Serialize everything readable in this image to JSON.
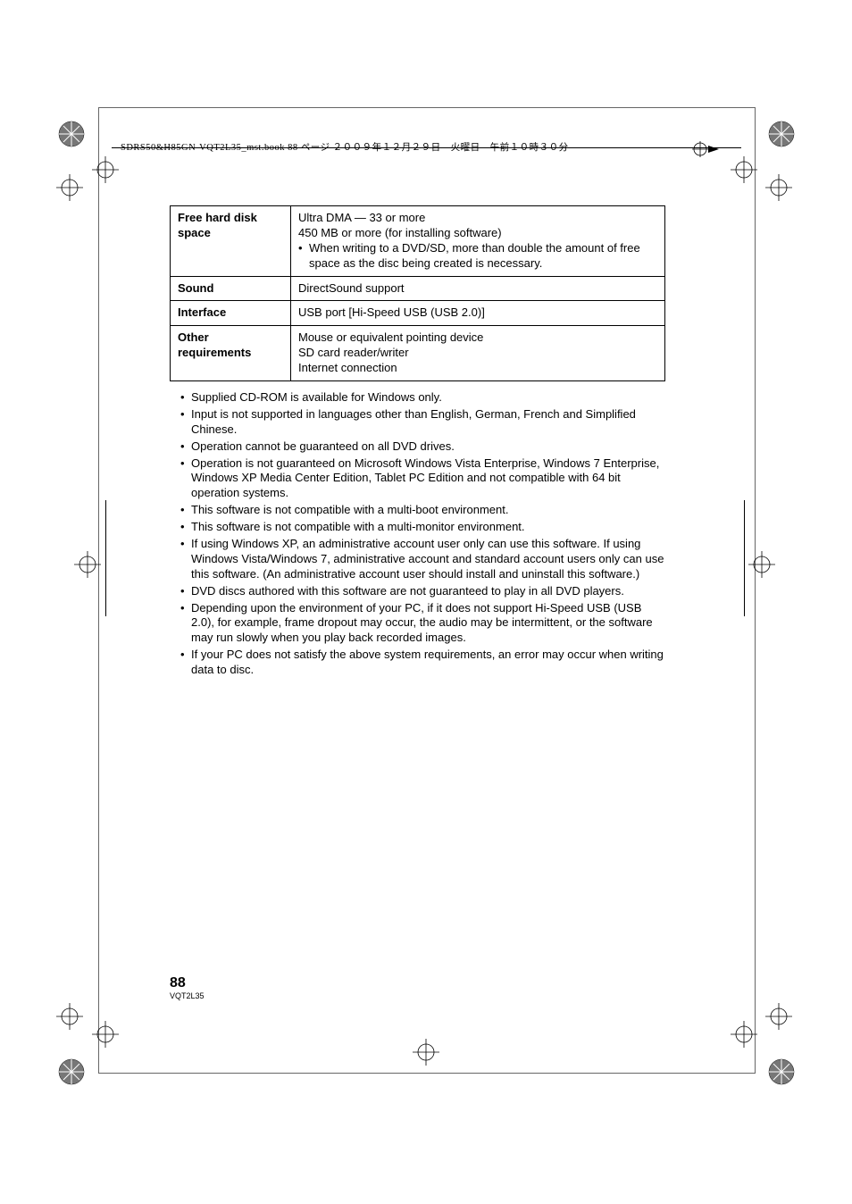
{
  "header": {
    "text": "SDRS50&H85GN-VQT2L35_mst.book  88 ページ  ２００９年１２月２９日　火曜日　午前１０時３０分"
  },
  "table": {
    "rows": [
      {
        "label": "Free hard disk space",
        "lines": [
          "Ultra DMA — 33 or more",
          "450 MB or more (for installing software)"
        ],
        "bullets": [
          "When writing to a DVD/SD, more than double the amount of free space as the disc being created is necessary."
        ]
      },
      {
        "label": "Sound",
        "lines": [
          "DirectSound support"
        ],
        "bullets": []
      },
      {
        "label": "Interface",
        "lines": [
          "USB port [Hi-Speed USB (USB 2.0)]"
        ],
        "bullets": []
      },
      {
        "label": "Other requirements",
        "lines": [
          "Mouse or equivalent pointing device",
          "SD card reader/writer",
          "Internet connection"
        ],
        "bullets": []
      }
    ]
  },
  "notes": [
    "Supplied CD-ROM is available for Windows only.",
    "Input is not supported in languages other than English, German, French and Simplified Chinese.",
    "Operation cannot be guaranteed on all DVD drives.",
    "Operation is not guaranteed on Microsoft Windows Vista Enterprise, Windows 7 Enterprise, Windows XP Media Center Edition, Tablet PC Edition and not compatible with 64 bit operation systems.",
    "This software is not compatible with a multi-boot environment.",
    "This software is not compatible with a multi-monitor environment.",
    "If using Windows XP, an administrative account user only can use this software. If using Windows Vista/Windows 7, administrative account and standard account users only can use this software. (An administrative account user should install and uninstall this software.)",
    "DVD discs authored with this software are not guaranteed to play in all DVD players.",
    "Depending upon the environment of your PC, if it does not support Hi-Speed USB (USB 2.0), for example, frame dropout may occur, the audio may be intermittent, or the software may run slowly when you play back recorded images.",
    "If your PC does not satisfy the above system requirements, an error may occur when writing data to disc."
  ],
  "footer": {
    "page": "88",
    "code": "VQT2L35"
  },
  "marks": {
    "colors": {
      "line": "#000000",
      "fill_light": "#ffffff"
    }
  }
}
